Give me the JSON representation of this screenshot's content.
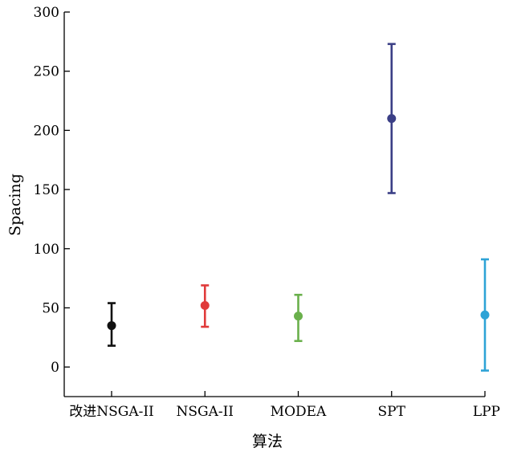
{
  "chart_data": {
    "type": "scatter",
    "subtype": "errorbar",
    "title": "",
    "xlabel": "算法",
    "ylabel": "Spacing",
    "ylim": [
      -25,
      300
    ],
    "yticks": [
      0,
      50,
      100,
      150,
      200,
      250,
      300
    ],
    "grid": false,
    "categories": [
      "改进NSGA-II",
      "NSGA-II",
      "MODEA",
      "SPT",
      "LPP"
    ],
    "points": [
      {
        "category": "改进NSGA-II",
        "mean": 35,
        "lower": 18,
        "upper": 54,
        "color": "#111111"
      },
      {
        "category": "NSGA-II",
        "mean": 52,
        "lower": 34,
        "upper": 69,
        "color": "#e03a3a"
      },
      {
        "category": "MODEA",
        "mean": 43,
        "lower": 22,
        "upper": 61,
        "color": "#6ab04c"
      },
      {
        "category": "SPT",
        "mean": 210,
        "lower": 147,
        "upper": 273,
        "color": "#3b3f86"
      },
      {
        "category": "LPP",
        "mean": 44,
        "lower": -3,
        "upper": 91,
        "color": "#2ea3d6"
      }
    ]
  }
}
